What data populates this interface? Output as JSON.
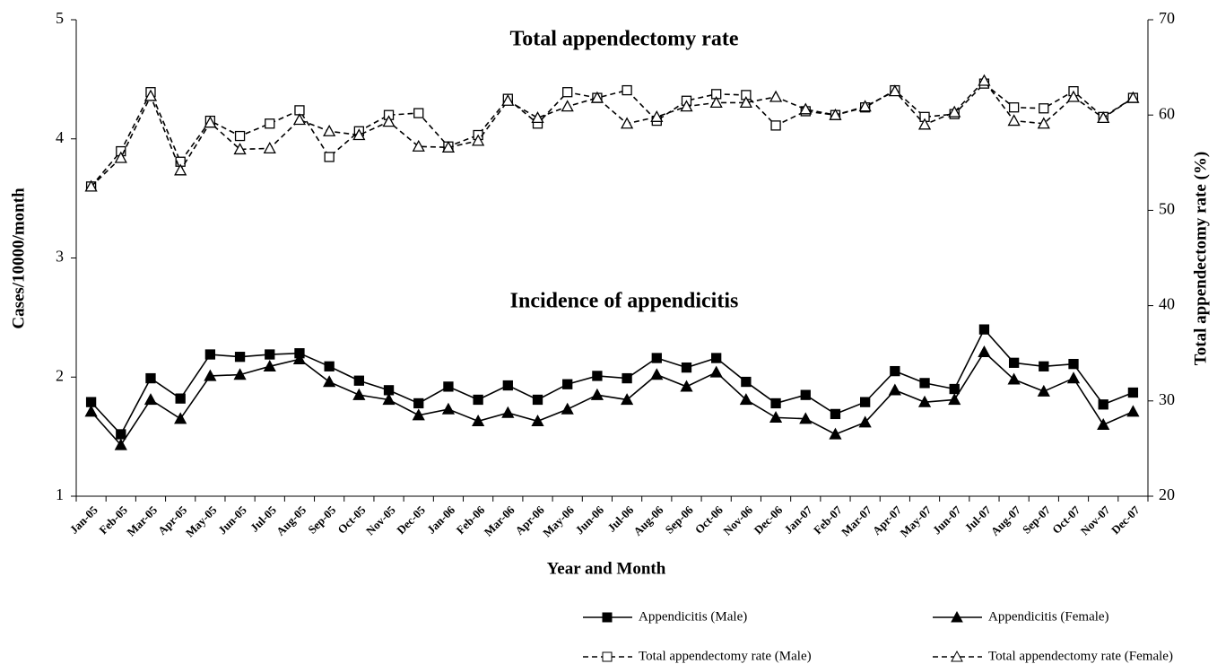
{
  "chart_data": {
    "type": "line",
    "annotations": [
      "Total appendectomy rate",
      "Incidence of appendicitis"
    ],
    "x_label": "Year and Month",
    "y_label": "Cases/10000/month",
    "y2_label": "Total appendectomy rate (%)",
    "categories": [
      "Jan-05",
      "Feb-05",
      "Mar-05",
      "Apr-05",
      "May-05",
      "Jun-05",
      "Jul-05",
      "Aug-05",
      "Sep-05",
      "Oct-05",
      "Nov-05",
      "Dec-05",
      "Jan-06",
      "Feb-06",
      "Mar-06",
      "Apr-06",
      "May-06",
      "Jun-06",
      "Jul-06",
      "Aug-06",
      "Sep-06",
      "Oct-06",
      "Nov-06",
      "Dec-06",
      "Jan-07",
      "Feb-07",
      "Mar-07",
      "Apr-07",
      "May-07",
      "Jun-07",
      "Jul-07",
      "Aug-07",
      "Sep-07",
      "Oct-07",
      "Nov-07",
      "Dec-07"
    ],
    "ylim": [
      1,
      5
    ],
    "yticks": [
      1,
      2,
      3,
      4,
      5
    ],
    "y2lim": [
      20,
      70
    ],
    "y2ticks": [
      20,
      30,
      40,
      50,
      60,
      70
    ],
    "series": [
      {
        "name": "Appendicitis (Male)",
        "color": "#000000",
        "marker": "square",
        "filled": true,
        "dashed": false,
        "values": [
          1.79,
          1.52,
          1.99,
          1.82,
          2.19,
          2.17,
          2.19,
          2.2,
          2.09,
          1.97,
          1.89,
          1.78,
          1.92,
          1.81,
          1.93,
          1.81,
          1.94,
          2.01,
          1.99,
          2.16,
          2.08,
          2.16,
          1.96,
          1.78,
          1.85,
          1.69,
          1.79,
          2.05,
          1.95,
          1.9,
          2.4,
          2.12,
          2.09,
          2.11,
          1.77,
          1.87
        ]
      },
      {
        "name": "Appendicitis (Female)",
        "color": "#000000",
        "marker": "triangle",
        "filled": true,
        "dashed": false,
        "values": [
          1.71,
          1.43,
          1.81,
          1.65,
          2.01,
          2.02,
          2.09,
          2.15,
          1.96,
          1.85,
          1.81,
          1.68,
          1.73,
          1.63,
          1.7,
          1.63,
          1.73,
          1.85,
          1.81,
          2.02,
          1.92,
          2.04,
          1.81,
          1.66,
          1.65,
          1.52,
          1.62,
          1.89,
          1.79,
          1.81,
          2.21,
          1.98,
          1.88,
          1.99,
          1.6,
          1.71
        ]
      },
      {
        "name": "Total appendectomy rate (Male)",
        "color": "#000000",
        "marker": "square",
        "filled": false,
        "dashed": true,
        "axis": "y2",
        "values": [
          52.5,
          56.2,
          62.4,
          55.1,
          59.4,
          57.8,
          59.1,
          60.5,
          55.6,
          58.3,
          60.0,
          60.2,
          56.7,
          57.9,
          61.7,
          59.1,
          62.4,
          61.8,
          62.6,
          59.4,
          61.5,
          62.2,
          62.1,
          58.9,
          60.4,
          60.0,
          60.8,
          62.6,
          59.8,
          60.1,
          63.3,
          60.8,
          60.7,
          62.5,
          59.8,
          61.8
        ]
      },
      {
        "name": "Total appendectomy rate (Female)",
        "color": "#000000",
        "marker": "triangle",
        "filled": false,
        "dashed": true,
        "axis": "y2",
        "values": [
          52.5,
          55.5,
          62.0,
          54.2,
          59.2,
          56.4,
          56.5,
          59.5,
          58.3,
          57.9,
          59.3,
          56.7,
          56.6,
          57.3,
          61.5,
          59.7,
          60.9,
          61.8,
          59.1,
          59.8,
          60.9,
          61.3,
          61.3,
          61.9,
          60.6,
          60.0,
          60.9,
          62.5,
          59.0,
          60.3,
          63.6,
          59.4,
          59.1,
          61.9,
          59.7,
          61.8
        ]
      }
    ]
  }
}
